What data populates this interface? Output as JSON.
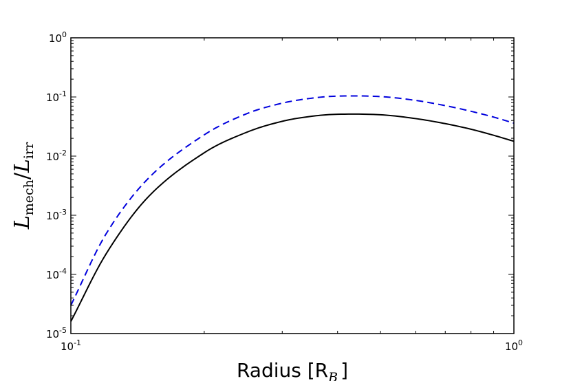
{
  "chart_data": {
    "type": "line",
    "title": "",
    "xscale": "log",
    "yscale": "log",
    "xlim": [
      0.1,
      1.0
    ],
    "ylim": [
      1e-05,
      1.0
    ],
    "grid": false,
    "xlabel": {
      "text": "Radius [R",
      "sub": "B",
      "close": "]"
    },
    "ylabel": {
      "num": "L",
      "num_sub": "mech",
      "slash": "/",
      "den": "L",
      "den_sub": "irr"
    },
    "x_ticks": [
      {
        "value": 0.1,
        "base": "10",
        "exp": "-1"
      },
      {
        "value": 1.0,
        "base": "10",
        "exp": "0"
      }
    ],
    "y_ticks": [
      {
        "value": 1e-05,
        "base": "10",
        "exp": "-5"
      },
      {
        "value": 0.0001,
        "base": "10",
        "exp": "-4"
      },
      {
        "value": 0.001,
        "base": "10",
        "exp": "-3"
      },
      {
        "value": 0.01,
        "base": "10",
        "exp": "-2"
      },
      {
        "value": 0.1,
        "base": "10",
        "exp": "-1"
      },
      {
        "value": 1.0,
        "base": "10",
        "exp": "0"
      }
    ],
    "series": [
      {
        "style": "solid",
        "color": "#000000",
        "x": [
          0.1,
          0.12,
          0.15,
          0.2,
          0.25,
          0.3,
          0.35,
          0.4,
          0.5,
          0.6,
          0.7,
          0.8,
          0.9,
          1.0
        ],
        "y": [
          1.6e-05,
          0.00022,
          0.0021,
          0.0114,
          0.0255,
          0.0388,
          0.0472,
          0.051,
          0.05,
          0.0431,
          0.0354,
          0.0285,
          0.0225,
          0.0178
        ]
      },
      {
        "style": "dashed",
        "color": "#0000dd",
        "x": [
          0.1,
          0.12,
          0.15,
          0.2,
          0.25,
          0.3,
          0.35,
          0.4,
          0.5,
          0.6,
          0.7,
          0.8,
          0.9,
          1.0
        ],
        "y": [
          3e-05,
          0.00048,
          0.0043,
          0.0229,
          0.0525,
          0.0786,
          0.0955,
          0.1034,
          0.1015,
          0.0875,
          0.0714,
          0.0573,
          0.0457,
          0.0361
        ]
      }
    ]
  }
}
